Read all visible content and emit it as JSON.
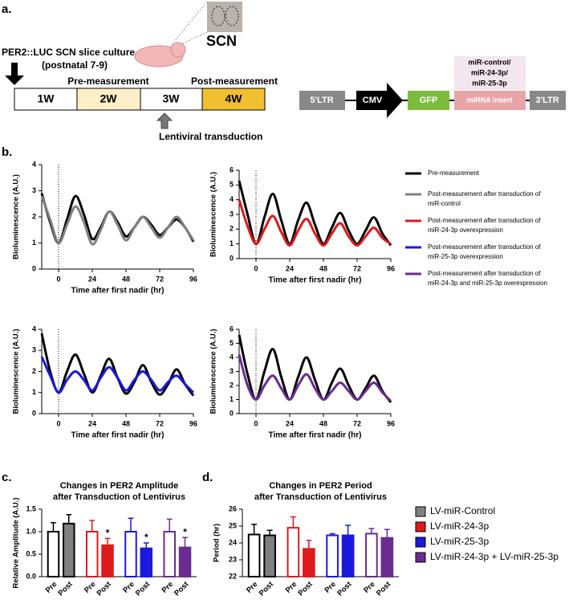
{
  "panel_labels": [
    "a.",
    "b.",
    "c.",
    "d."
  ],
  "panel_a": {
    "scn_label": "SCN",
    "culture": [
      "PER2::LUC SCN slice culture",
      "(postnatal 7-9)"
    ],
    "pre": "Pre-measurement",
    "post": "Post-measurement",
    "weeks": [
      "1W",
      "2W",
      "3W",
      "4W"
    ],
    "transduction": "Lentiviral transduction",
    "construct": [
      "5'LTR",
      "CMV",
      "GFP",
      "miRNA insert",
      "3'LTR"
    ],
    "insert_options": [
      "miR-control/",
      "miR-24-3p/",
      "miR-25-3p"
    ]
  },
  "legend_b": [
    {
      "name": [
        "Pre-measurement"
      ],
      "color": "#000000"
    },
    {
      "name": [
        "Post-measurement after transduction of",
        "miR-control"
      ],
      "color": "#808080"
    },
    {
      "name": [
        "Post-measurement after transduction of",
        "miR-24-3p overexpression"
      ],
      "color": "#e0191b"
    },
    {
      "name": [
        "Post-measurement after transduction of",
        "miR-25-3p overexpression"
      ],
      "color": "#1a1adf"
    },
    {
      "name": [
        "Post-measurement after transduction of",
        "miR-24-3p and miR-25-3p overexpression"
      ],
      "color": "#6a2c91"
    }
  ],
  "legend_cd": [
    {
      "name": "LV-miR-Control",
      "color": "#808080"
    },
    {
      "name": "LV-miR-24-3p",
      "color": "#e0191b"
    },
    {
      "name": "LV-miR-25-3p",
      "color": "#1a1adf"
    },
    {
      "name": "LV-miR-24-3p + LV-miR-25-3p",
      "color": "#6a2c91"
    }
  ],
  "chart_data": [
    {
      "type": "line",
      "xlabel": "Time after first nadir (hr)",
      "ylabel": "Bioluminescence (A.U.)",
      "x": [
        -12,
        -6,
        0,
        6,
        12,
        18,
        24,
        30,
        36,
        42,
        48,
        54,
        60,
        66,
        72,
        78,
        84,
        90,
        96
      ],
      "xlim": [
        -12,
        96
      ],
      "xticks": [
        0,
        24,
        48,
        72,
        96
      ],
      "ylim": [
        0,
        4
      ],
      "yticks": [
        0,
        1,
        2,
        3,
        4
      ],
      "vline": 0,
      "series": [
        {
          "color": "#000000",
          "values": [
            2.9,
            1.8,
            1.0,
            1.9,
            2.8,
            2.1,
            1.15,
            1.6,
            2.2,
            1.8,
            1.25,
            1.6,
            2.0,
            1.7,
            1.3,
            1.6,
            1.9,
            1.6,
            1.05
          ]
        },
        {
          "color": "#808080",
          "values": [
            2.8,
            1.9,
            1.0,
            1.7,
            2.4,
            1.8,
            0.95,
            1.5,
            2.2,
            1.7,
            1.1,
            1.6,
            2.0,
            1.6,
            1.2,
            1.6,
            2.0,
            1.6,
            1.1
          ]
        }
      ]
    },
    {
      "type": "line",
      "xlabel": "Time after first nadir (hr)",
      "ylabel": "Bioluminescence (A.U.)",
      "x": [
        -12,
        -6,
        0,
        6,
        12,
        18,
        24,
        30,
        36,
        42,
        48,
        54,
        60,
        66,
        72,
        78,
        84,
        90,
        96
      ],
      "xlim": [
        -12,
        96
      ],
      "xticks": [
        0,
        24,
        48,
        72,
        96
      ],
      "ylim": [
        0,
        6
      ],
      "yticks": [
        0,
        1,
        2,
        3,
        4,
        5,
        6
      ],
      "vline": 0,
      "series": [
        {
          "color": "#000000",
          "values": [
            5.3,
            3.0,
            1.0,
            2.8,
            4.4,
            2.6,
            1.0,
            2.6,
            3.8,
            2.3,
            1.0,
            2.1,
            3.1,
            1.9,
            1.0,
            1.9,
            2.8,
            1.7,
            0.9
          ]
        },
        {
          "color": "#e0191b",
          "values": [
            4.0,
            2.2,
            1.0,
            2.0,
            2.9,
            1.8,
            0.9,
            1.9,
            2.7,
            1.7,
            0.9,
            1.7,
            2.4,
            1.5,
            0.9,
            1.5,
            2.1,
            1.4,
            1.0
          ]
        }
      ]
    },
    {
      "type": "line",
      "xlabel": "Time after first nadir (hr)",
      "ylabel": "Bioluminescence (A.U.)",
      "x": [
        -12,
        -6,
        0,
        6,
        12,
        18,
        24,
        30,
        36,
        42,
        48,
        54,
        60,
        66,
        72,
        78,
        84,
        90,
        96
      ],
      "xlim": [
        -12,
        96
      ],
      "xticks": [
        0,
        24,
        48,
        72,
        96
      ],
      "ylim": [
        0,
        4
      ],
      "yticks": [
        0,
        1,
        2,
        3,
        4
      ],
      "vline": 0,
      "series": [
        {
          "color": "#000000",
          "values": [
            3.8,
            2.0,
            1.0,
            2.0,
            2.8,
            1.9,
            1.0,
            1.8,
            2.6,
            1.7,
            0.95,
            1.5,
            2.3,
            1.5,
            0.9,
            1.4,
            2.1,
            1.4,
            0.85
          ]
        },
        {
          "color": "#1a1adf",
          "values": [
            2.7,
            1.8,
            1.0,
            1.6,
            2.0,
            1.6,
            1.1,
            1.7,
            2.2,
            1.7,
            1.1,
            1.6,
            2.0,
            1.6,
            1.1,
            1.5,
            1.8,
            1.4,
            1.0
          ]
        }
      ]
    },
    {
      "type": "line",
      "xlabel": "Time after first nadir (hr)",
      "ylabel": "Bioluminescence (A.U.)",
      "x": [
        -12,
        -6,
        0,
        6,
        12,
        18,
        24,
        30,
        36,
        42,
        48,
        54,
        60,
        66,
        72,
        78,
        84,
        90,
        96
      ],
      "xlim": [
        -12,
        96
      ],
      "xticks": [
        0,
        24,
        48,
        72,
        96
      ],
      "ylim": [
        0,
        6
      ],
      "yticks": [
        0,
        1,
        2,
        3,
        4,
        5,
        6
      ],
      "vline": 0,
      "series": [
        {
          "color": "#000000",
          "values": [
            5.6,
            2.8,
            1.0,
            3.0,
            4.6,
            2.6,
            1.0,
            2.6,
            4.0,
            2.4,
            1.0,
            2.2,
            3.2,
            2.0,
            1.0,
            1.8,
            2.7,
            1.6,
            0.8
          ]
        },
        {
          "color": "#6a2c91",
          "values": [
            4.2,
            2.0,
            1.0,
            2.0,
            2.7,
            1.8,
            1.0,
            2.0,
            2.8,
            1.8,
            1.0,
            1.6,
            2.2,
            1.6,
            1.0,
            1.6,
            2.2,
            1.5,
            0.9
          ]
        }
      ]
    },
    {
      "type": "bar",
      "title": [
        "Changes in PER2 Amplitude",
        "after Transduction of Lentivirus"
      ],
      "ylabel": "Relative Amplitude (A.U.)",
      "categories": [
        "Pre",
        "Post",
        "Pre",
        "Post",
        "Pre",
        "Post",
        "Pre",
        "Post"
      ],
      "values": [
        1.0,
        1.18,
        1.0,
        0.7,
        1.0,
        0.63,
        1.0,
        0.65
      ],
      "errors": [
        0.2,
        0.2,
        0.25,
        0.15,
        0.3,
        0.12,
        0.28,
        0.22
      ],
      "edge_colors": [
        "#000000",
        "#000000",
        "#e0191b",
        "#e0191b",
        "#1a1adf",
        "#1a1adf",
        "#6a2c91",
        "#6a2c91"
      ],
      "fill_colors": [
        "#ffffff",
        "#808080",
        "#ffffff",
        "#e0191b",
        "#ffffff",
        "#1a1adf",
        "#ffffff",
        "#6a2c91"
      ],
      "significance": [
        null,
        null,
        null,
        "*",
        null,
        "*",
        null,
        "*"
      ],
      "ylim": [
        0,
        1.5
      ],
      "yticks": [
        {
          "value": 0,
          "label": "0.0"
        },
        0.5,
        {
          "value": 1,
          "label": "1.0"
        },
        1.5
      ]
    },
    {
      "type": "bar",
      "title": [
        "Changes in PER2 Period",
        "after Transduction of Lentivirus"
      ],
      "ylabel": "Period (hr)",
      "categories": [
        "Pre",
        "Post",
        "Pre",
        "Post",
        "Pre",
        "Post",
        "Pre",
        "Post"
      ],
      "values": [
        24.5,
        24.45,
        24.9,
        23.65,
        24.45,
        24.45,
        24.55,
        24.3
      ],
      "errors": [
        0.6,
        0.3,
        0.65,
        0.5,
        0.1,
        0.6,
        0.3,
        0.5
      ],
      "edge_colors": [
        "#000000",
        "#000000",
        "#e0191b",
        "#e0191b",
        "#1a1adf",
        "#1a1adf",
        "#6a2c91",
        "#6a2c91"
      ],
      "fill_colors": [
        "#ffffff",
        "#808080",
        "#ffffff",
        "#e0191b",
        "#ffffff",
        "#1a1adf",
        "#ffffff",
        "#6a2c91"
      ],
      "ylim": [
        22,
        26
      ],
      "yticks": [
        22,
        23,
        24,
        25,
        26
      ]
    }
  ]
}
